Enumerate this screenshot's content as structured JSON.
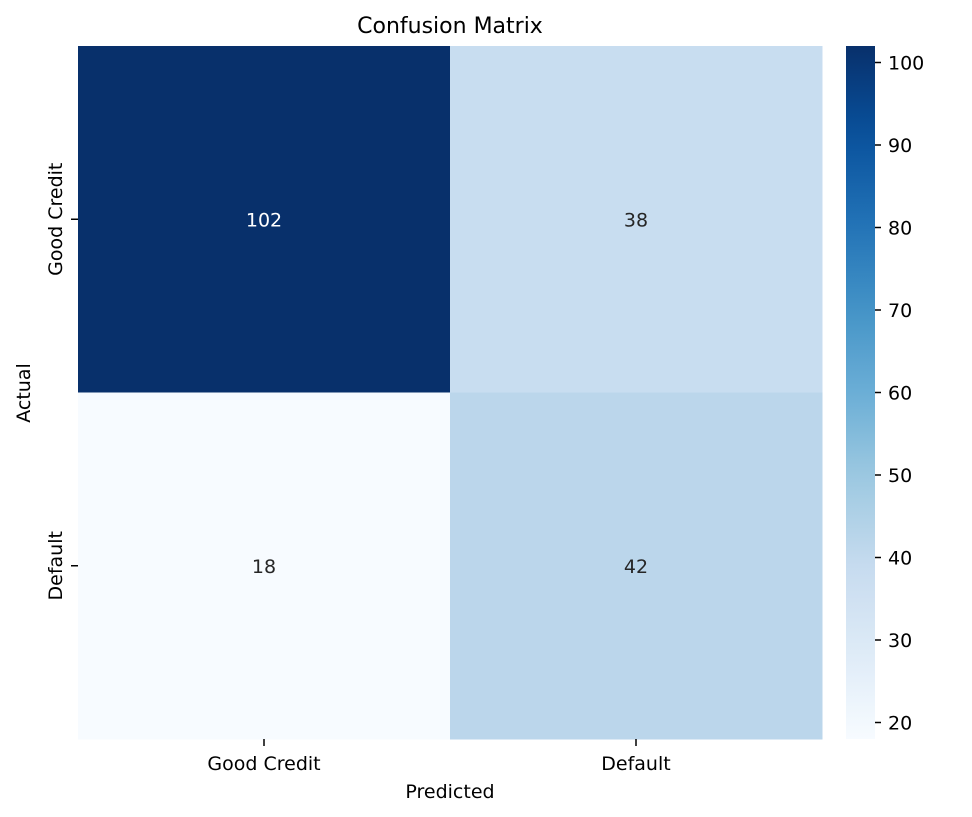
{
  "chart_data": {
    "type": "heatmap",
    "title": "Confusion Matrix",
    "xlabel": "Predicted",
    "ylabel": "Actual",
    "x_categories": [
      "Good Credit",
      "Default"
    ],
    "y_categories": [
      "Good Credit",
      "Default"
    ],
    "values": [
      [
        102,
        38
      ],
      [
        18,
        42
      ]
    ],
    "colormap": "Blues",
    "color_range": [
      18,
      102
    ],
    "colorbar_ticks": [
      20,
      30,
      40,
      50,
      60,
      70,
      80,
      90,
      100
    ],
    "annotation_dark_color": "#262626",
    "annotation_light_color": "#ffffff"
  }
}
